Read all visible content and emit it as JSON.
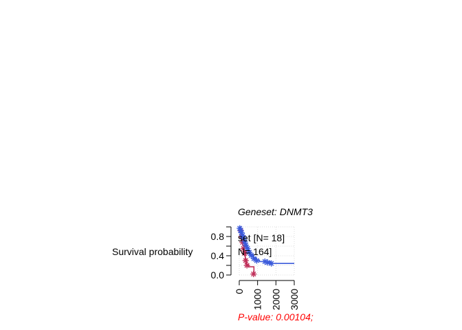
{
  "chart_data": {
    "type": "line",
    "kind": "kaplan-meier",
    "title": "Geneset: DNMT3",
    "ylabel": "Survival probability",
    "xlabel": "",
    "xlim": [
      0,
      3000
    ],
    "ylim": [
      0,
      1
    ],
    "x_ticks": [
      "0",
      "1000",
      "2000",
      "3000"
    ],
    "y_ticks": [
      "0.0",
      "0.4",
      "0.8"
    ],
    "grid": true,
    "legend_position": "top-left",
    "legend_entries": [
      "set [N= 18]",
      "N= 164]"
    ],
    "annotation": "P-value: 0.00104;",
    "series": [
      {
        "color": "#c0305a",
        "censor_mark": "asterisk",
        "steps": [
          [
            0,
            1.0
          ],
          [
            60,
            0.94
          ],
          [
            100,
            0.83
          ],
          [
            150,
            0.72
          ],
          [
            200,
            0.61
          ],
          [
            260,
            0.5
          ],
          [
            330,
            0.33
          ],
          [
            400,
            0.22
          ],
          [
            500,
            0.17
          ],
          [
            800,
            0.0
          ]
        ],
        "censored": [
          [
            80,
            0.92
          ],
          [
            120,
            0.8
          ],
          [
            180,
            0.68
          ],
          [
            230,
            0.55
          ],
          [
            290,
            0.45
          ],
          [
            350,
            0.3
          ],
          [
            420,
            0.2
          ],
          [
            780,
            0.02
          ]
        ]
      },
      {
        "color": "#3b5bdb",
        "censor_mark": "asterisk",
        "steps": [
          [
            0,
            1.0
          ],
          [
            50,
            0.95
          ],
          [
            100,
            0.9
          ],
          [
            150,
            0.85
          ],
          [
            200,
            0.8
          ],
          [
            260,
            0.73
          ],
          [
            330,
            0.65
          ],
          [
            400,
            0.58
          ],
          [
            500,
            0.5
          ],
          [
            600,
            0.43
          ],
          [
            750,
            0.36
          ],
          [
            900,
            0.31
          ],
          [
            1100,
            0.28
          ],
          [
            1700,
            0.24
          ],
          [
            3000,
            0.24
          ]
        ],
        "censored": [
          [
            30,
            0.97
          ],
          [
            70,
            0.93
          ],
          [
            120,
            0.88
          ],
          [
            180,
            0.82
          ],
          [
            230,
            0.77
          ],
          [
            300,
            0.69
          ],
          [
            360,
            0.62
          ],
          [
            450,
            0.55
          ],
          [
            550,
            0.47
          ],
          [
            650,
            0.41
          ],
          [
            800,
            0.34
          ],
          [
            950,
            0.3
          ],
          [
            1400,
            0.28
          ],
          [
            1550,
            0.26
          ],
          [
            1750,
            0.24
          ]
        ]
      }
    ]
  }
}
